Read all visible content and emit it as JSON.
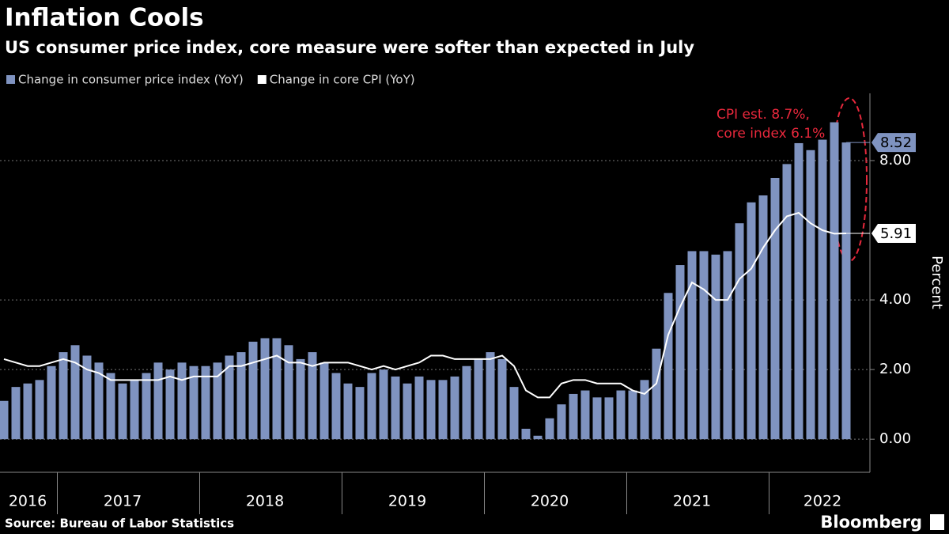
{
  "chart_data": {
    "type": "bar",
    "title": "Inflation Cools",
    "subtitle": "US consumer price index, core measure were softer than expected in July",
    "y_label": "Percent",
    "annotations": [
      "CPI est. 8.7%,",
      "core index 6.1%"
    ],
    "source": "Source: Bureau of Labor Statistics",
    "brand": "Bloomberg",
    "categories": [
      null,
      null,
      "2016",
      null,
      null,
      null,
      null,
      null,
      null,
      null,
      "2017",
      null,
      null,
      null,
      null,
      null,
      null,
      null,
      null,
      null,
      null,
      null,
      "2018",
      null,
      null,
      null,
      null,
      null,
      null,
      null,
      null,
      null,
      null,
      null,
      "2019",
      null,
      null,
      null,
      null,
      null,
      null,
      null,
      null,
      null,
      null,
      null,
      "2020",
      null,
      null,
      null,
      null,
      null,
      null,
      null,
      null,
      null,
      null,
      null,
      "2021",
      null,
      null,
      null,
      null,
      null,
      null,
      null,
      null,
      null,
      null,
      "2022",
      null,
      null
    ],
    "series": [
      {
        "name": "Change in consumer price index (YoY)",
        "type": "bar",
        "color": "#7f93c0",
        "values": [
          1.1,
          1.5,
          1.6,
          1.7,
          2.1,
          2.5,
          2.7,
          2.4,
          2.2,
          1.9,
          1.6,
          1.7,
          1.9,
          2.2,
          2.0,
          2.2,
          2.1,
          2.1,
          2.2,
          2.4,
          2.5,
          2.8,
          2.9,
          2.9,
          2.7,
          2.3,
          2.5,
          2.2,
          1.9,
          1.6,
          1.5,
          1.9,
          2.0,
          1.8,
          1.6,
          1.8,
          1.7,
          1.7,
          1.8,
          2.1,
          2.3,
          2.5,
          2.3,
          1.5,
          0.3,
          0.1,
          0.6,
          1.0,
          1.3,
          1.4,
          1.2,
          1.2,
          1.4,
          1.4,
          1.7,
          2.6,
          4.2,
          5.0,
          5.4,
          5.4,
          5.3,
          5.4,
          6.2,
          6.8,
          7.0,
          7.5,
          7.9,
          8.5,
          8.3,
          8.6,
          9.1,
          8.52
        ]
      },
      {
        "name": "Change in core CPI (YoY)",
        "type": "line",
        "color": "#ffffff",
        "values": [
          2.3,
          2.2,
          2.1,
          2.1,
          2.2,
          2.3,
          2.2,
          2.0,
          1.9,
          1.7,
          1.7,
          1.7,
          1.7,
          1.7,
          1.8,
          1.7,
          1.8,
          1.8,
          1.8,
          2.1,
          2.1,
          2.2,
          2.3,
          2.4,
          2.2,
          2.2,
          2.1,
          2.2,
          2.2,
          2.2,
          2.1,
          2.0,
          2.1,
          2.0,
          2.1,
          2.2,
          2.4,
          2.4,
          2.3,
          2.3,
          2.3,
          2.3,
          2.4,
          2.1,
          1.4,
          1.2,
          1.2,
          1.6,
          1.7,
          1.7,
          1.6,
          1.6,
          1.6,
          1.4,
          1.3,
          1.6,
          3.0,
          3.8,
          4.5,
          4.3,
          4.0,
          4.0,
          4.6,
          4.9,
          5.5,
          6.0,
          6.4,
          6.5,
          6.2,
          6.0,
          5.9,
          5.91
        ]
      }
    ],
    "ylim": [
      -0.95,
      9.93
    ],
    "yticks": [
      {
        "value": 0,
        "label": "0.00"
      },
      {
        "value": 2,
        "label": "2.00"
      },
      {
        "value": 4,
        "label": "4.00"
      },
      {
        "value": 8,
        "label": "8.00"
      }
    ],
    "grid": true
  }
}
